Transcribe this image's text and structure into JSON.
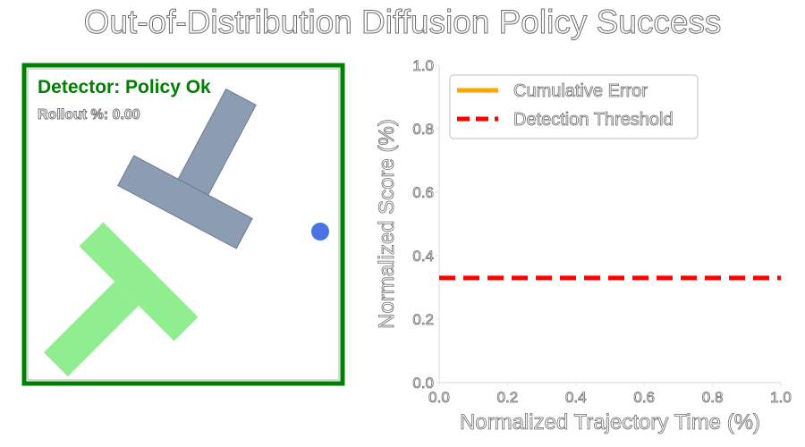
{
  "title": "Out-of-Distribution Diffusion Policy Success",
  "detector": {
    "status_text": "Detector: Policy Ok",
    "rollout_text": "Rollout %: 0.00",
    "status_color": "#008000",
    "goal_color": "#90ee90",
    "block_color": "#8c9db3",
    "agent_color": "#4b73e6"
  },
  "chart_data": {
    "type": "line",
    "xlabel": "Normalized Trajectory Time (%)",
    "ylabel": "Normalized Score (%)",
    "xlim": [
      0.0,
      1.0
    ],
    "ylim": [
      0.0,
      1.0
    ],
    "xticks": [
      "0.0",
      "0.2",
      "0.4",
      "0.6",
      "0.8",
      "1.0"
    ],
    "yticks": [
      "0.0",
      "0.2",
      "0.4",
      "0.6",
      "0.8",
      "1.0"
    ],
    "grid": false,
    "legend_position": "top-left",
    "series": [
      {
        "name": "Cumulative Error",
        "color": "#ffa500",
        "style": "solid",
        "x": [],
        "y": []
      },
      {
        "name": "Detection Threshold",
        "color": "#ff0000",
        "style": "dashed",
        "x": [
          0.0,
          1.0
        ],
        "y": [
          0.33,
          0.33
        ]
      }
    ]
  }
}
